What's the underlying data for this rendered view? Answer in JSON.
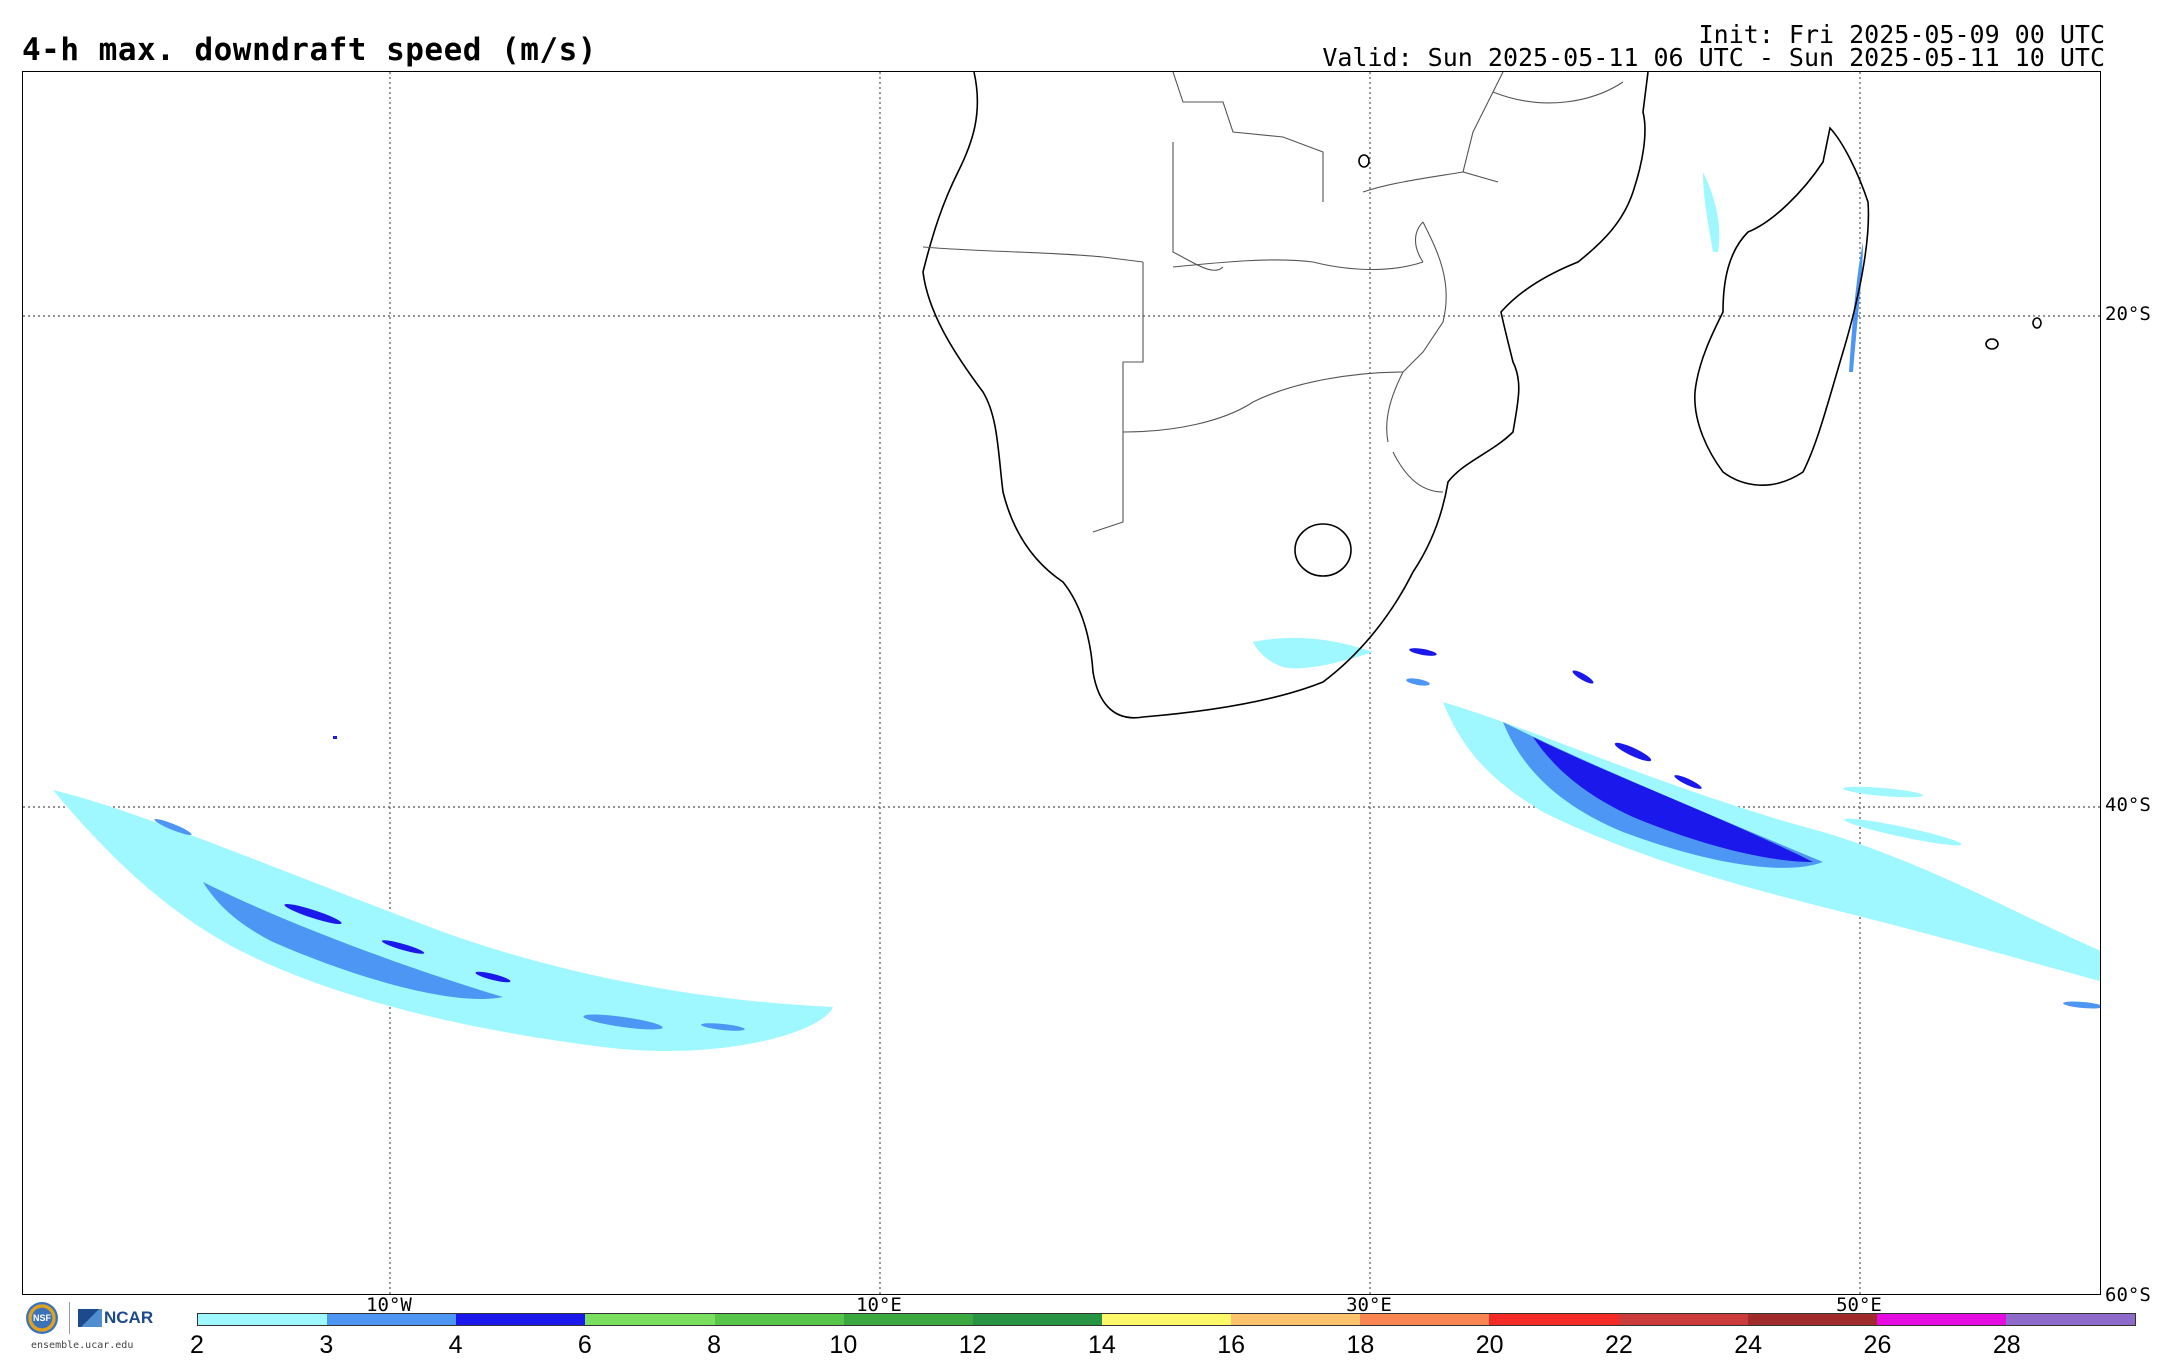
{
  "header": {
    "title": "4-h max. downdraft speed (m/s)",
    "init": "Init: Fri 2025-05-09 00 UTC",
    "valid": "Valid: Sun 2025-05-11 06 UTC - Sun 2025-05-11 10 UTC"
  },
  "map": {
    "lat_labels": [
      "20°S",
      "40°S",
      "60°S"
    ],
    "lon_labels": [
      "10°W",
      "10°E",
      "30°E",
      "50°E"
    ],
    "gridlines": "dotted",
    "land_outline_color": "#000000",
    "border_color": "#555555"
  },
  "colorbar": {
    "ticks": [
      "2",
      "3",
      "4",
      "6",
      "8",
      "10",
      "12",
      "14",
      "16",
      "18",
      "20",
      "22",
      "24",
      "26",
      "28"
    ],
    "colors": [
      "#9ff8ff",
      "#4d96f4",
      "#1a18ea",
      "#7adf5e",
      "#56c54a",
      "#3aa83e",
      "#279443",
      "#fdf86a",
      "#fcc26c",
      "#f98652",
      "#f42a26",
      "#cc3b3b",
      "#a02b2b",
      "#e40ce1",
      "#8e6acb"
    ]
  },
  "logos": {
    "nsf_text": "NSF",
    "ncar_text": "NCAR",
    "site": "ensemble.ucar.edu"
  }
}
